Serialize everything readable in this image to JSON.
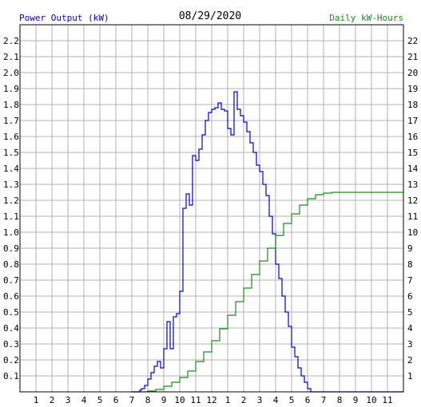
{
  "chart_data": {
    "type": "line",
    "title": "08/29/2020",
    "left_axis_label": "Power Output (kW)",
    "right_axis_label": "Daily kW-Hours",
    "x_tick_labels": [
      "1",
      "2",
      "3",
      "4",
      "5",
      "6",
      "7",
      "8",
      "9",
      "10",
      "11",
      "12",
      "1",
      "2",
      "3",
      "4",
      "5",
      "6",
      "7",
      "8",
      "9",
      "10",
      "11"
    ],
    "left_ticks": [
      "0.1",
      "0.2",
      "0.3",
      "0.4",
      "0.5",
      "0.6",
      "0.7",
      "0.8",
      "0.9",
      "1.0",
      "1.1",
      "1.2",
      "1.3",
      "1.4",
      "1.5",
      "1.6",
      "1.7",
      "1.8",
      "1.9",
      "2.0",
      "2.1",
      "2.2"
    ],
    "right_ticks": [
      "1",
      "2",
      "3",
      "4",
      "5",
      "6",
      "7",
      "8",
      "9",
      "10",
      "11",
      "12",
      "13",
      "14",
      "15",
      "16",
      "17",
      "18",
      "19",
      "20",
      "21",
      "22"
    ],
    "xlim": [
      0,
      24
    ],
    "ylim_left": [
      0,
      2.3
    ],
    "ylim_right": [
      0,
      23
    ],
    "grid": true,
    "colors": {
      "power": "#0000c0",
      "energy": "#1a8a1a",
      "grid": "#b0b0b0",
      "left_label": "#0000c0",
      "right_label": "#1a8a1a",
      "frame": "#000000"
    },
    "series": [
      {
        "name": "Power Output (kW)",
        "axis": "left",
        "step": true,
        "x": [
          7.0,
          7.5,
          7.6,
          7.8,
          8.0,
          8.2,
          8.4,
          8.6,
          8.8,
          9.0,
          9.2,
          9.4,
          9.6,
          9.8,
          10.0,
          10.2,
          10.4,
          10.6,
          10.8,
          11.0,
          11.2,
          11.4,
          11.6,
          11.8,
          12.0,
          12.2,
          12.4,
          12.6,
          12.8,
          13.0,
          13.2,
          13.4,
          13.6,
          13.8,
          14.0,
          14.2,
          14.4,
          14.6,
          14.8,
          15.0,
          15.2,
          15.4,
          15.6,
          15.8,
          16.0,
          16.2,
          16.4,
          16.6,
          16.8,
          17.0,
          17.2,
          17.4,
          17.6,
          17.8,
          18.0,
          18.2,
          18.4,
          18.6,
          18.8,
          19.0,
          19.2,
          19.4,
          19.6,
          19.8,
          20.0,
          20.2,
          20.4,
          20.6,
          20.8,
          21.0
        ],
        "y": [
          0.0,
          0.01,
          0.02,
          0.04,
          0.08,
          0.12,
          0.16,
          0.19,
          0.15,
          0.27,
          0.44,
          0.27,
          0.47,
          0.49,
          0.63,
          1.15,
          1.24,
          1.17,
          1.48,
          1.45,
          1.52,
          1.61,
          1.7,
          1.75,
          1.77,
          1.78,
          1.81,
          1.77,
          1.76,
          1.65,
          1.61,
          1.88,
          1.77,
          1.73,
          1.69,
          1.63,
          1.56,
          1.5,
          1.42,
          1.38,
          1.3,
          1.23,
          1.1,
          0.99,
          0.8,
          0.71,
          0.6,
          0.5,
          0.41,
          0.28,
          0.22,
          0.15,
          0.1,
          0.06,
          0.02,
          0.0,
          0.0,
          0.0,
          0.0,
          0.0,
          0.0,
          0.0,
          0.0,
          0.0,
          0.0,
          0.0,
          0.0,
          0.0,
          0.0,
          0.0
        ]
      },
      {
        "name": "Daily kW-Hours",
        "axis": "right",
        "step": true,
        "x": [
          7.0,
          7.5,
          8.0,
          8.5,
          9.0,
          9.5,
          10.0,
          10.5,
          11.0,
          11.5,
          12.0,
          12.5,
          13.0,
          13.5,
          14.0,
          14.5,
          15.0,
          15.5,
          16.0,
          16.5,
          17.0,
          17.5,
          18.0,
          18.5,
          19.0,
          19.5,
          20.0,
          20.5,
          21.0,
          21.5,
          22.0,
          22.5,
          23.0,
          23.5,
          24.0
        ],
        "y": [
          0.0,
          0.0,
          0.05,
          0.15,
          0.35,
          0.6,
          0.9,
          1.3,
          1.9,
          2.5,
          3.2,
          3.95,
          4.8,
          5.65,
          6.5,
          7.35,
          8.2,
          9.0,
          9.8,
          10.55,
          11.15,
          11.7,
          12.1,
          12.35,
          12.45,
          12.5,
          12.5,
          12.5,
          12.5,
          12.5,
          12.5,
          12.5,
          12.5,
          12.5,
          12.5
        ]
      }
    ]
  }
}
